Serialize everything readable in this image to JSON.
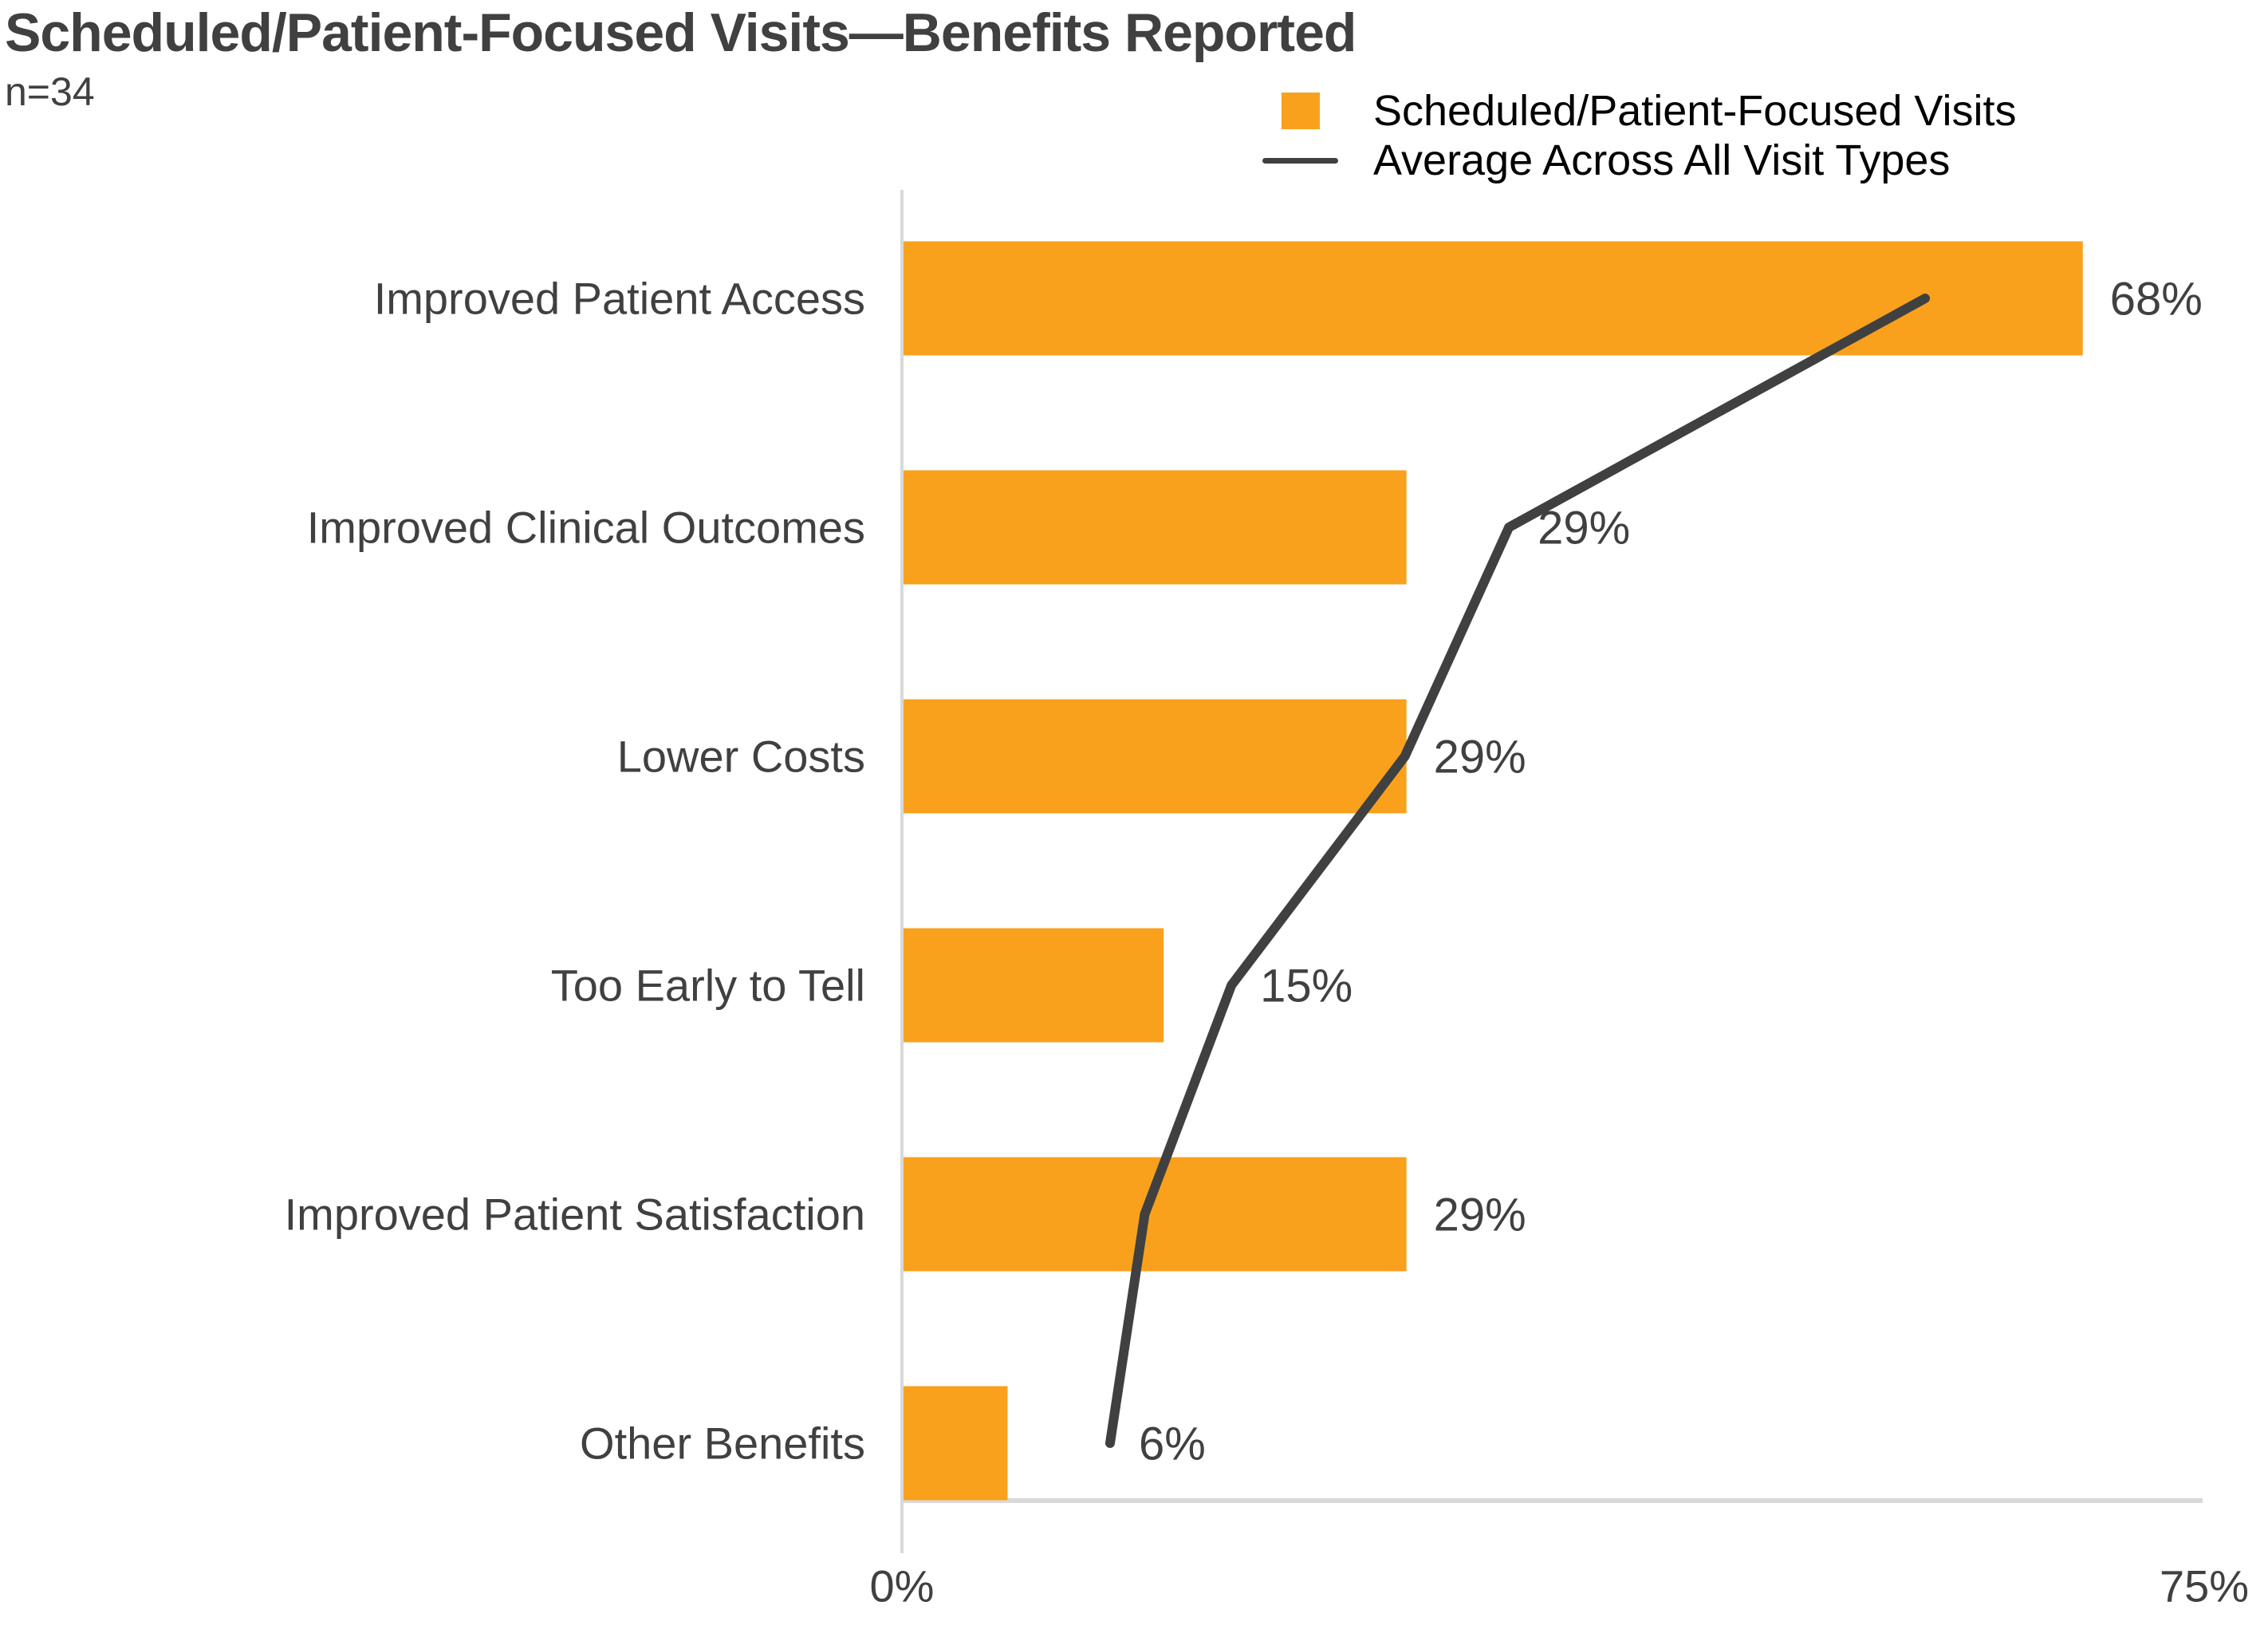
{
  "chart_data": {
    "type": "bar",
    "orientation": "horizontal",
    "title": "Scheduled/Patient-Focused Visits—Benefits Reported",
    "n_label": "n=34",
    "categories": [
      "Improved Patient Access",
      "Improved Clinical Outcomes",
      "Lower Costs",
      "Too Early to Tell",
      "Improved Patient Satisfaction",
      "Other Benefits"
    ],
    "series": [
      {
        "name": "Scheduled/Patient-Focused Visits",
        "type": "bar",
        "color": "#F9A11D",
        "values": [
          68,
          29,
          29,
          15,
          29,
          6
        ],
        "value_labels": [
          "68%",
          "29%",
          "29%",
          "15%",
          "29%",
          "6%"
        ]
      },
      {
        "name": "Average Across All Visit Types",
        "type": "line",
        "color": "#404040",
        "values": [
          59,
          35,
          29,
          19,
          14,
          12
        ]
      }
    ],
    "xlabel": "",
    "ylabel": "",
    "xlim": [
      0,
      75
    ],
    "x_tick_labels": [
      "0%",
      "75%"
    ],
    "grid": false,
    "legend_position": "top-right",
    "axis_color": "#D9D9D9",
    "text_color": "#404040"
  }
}
